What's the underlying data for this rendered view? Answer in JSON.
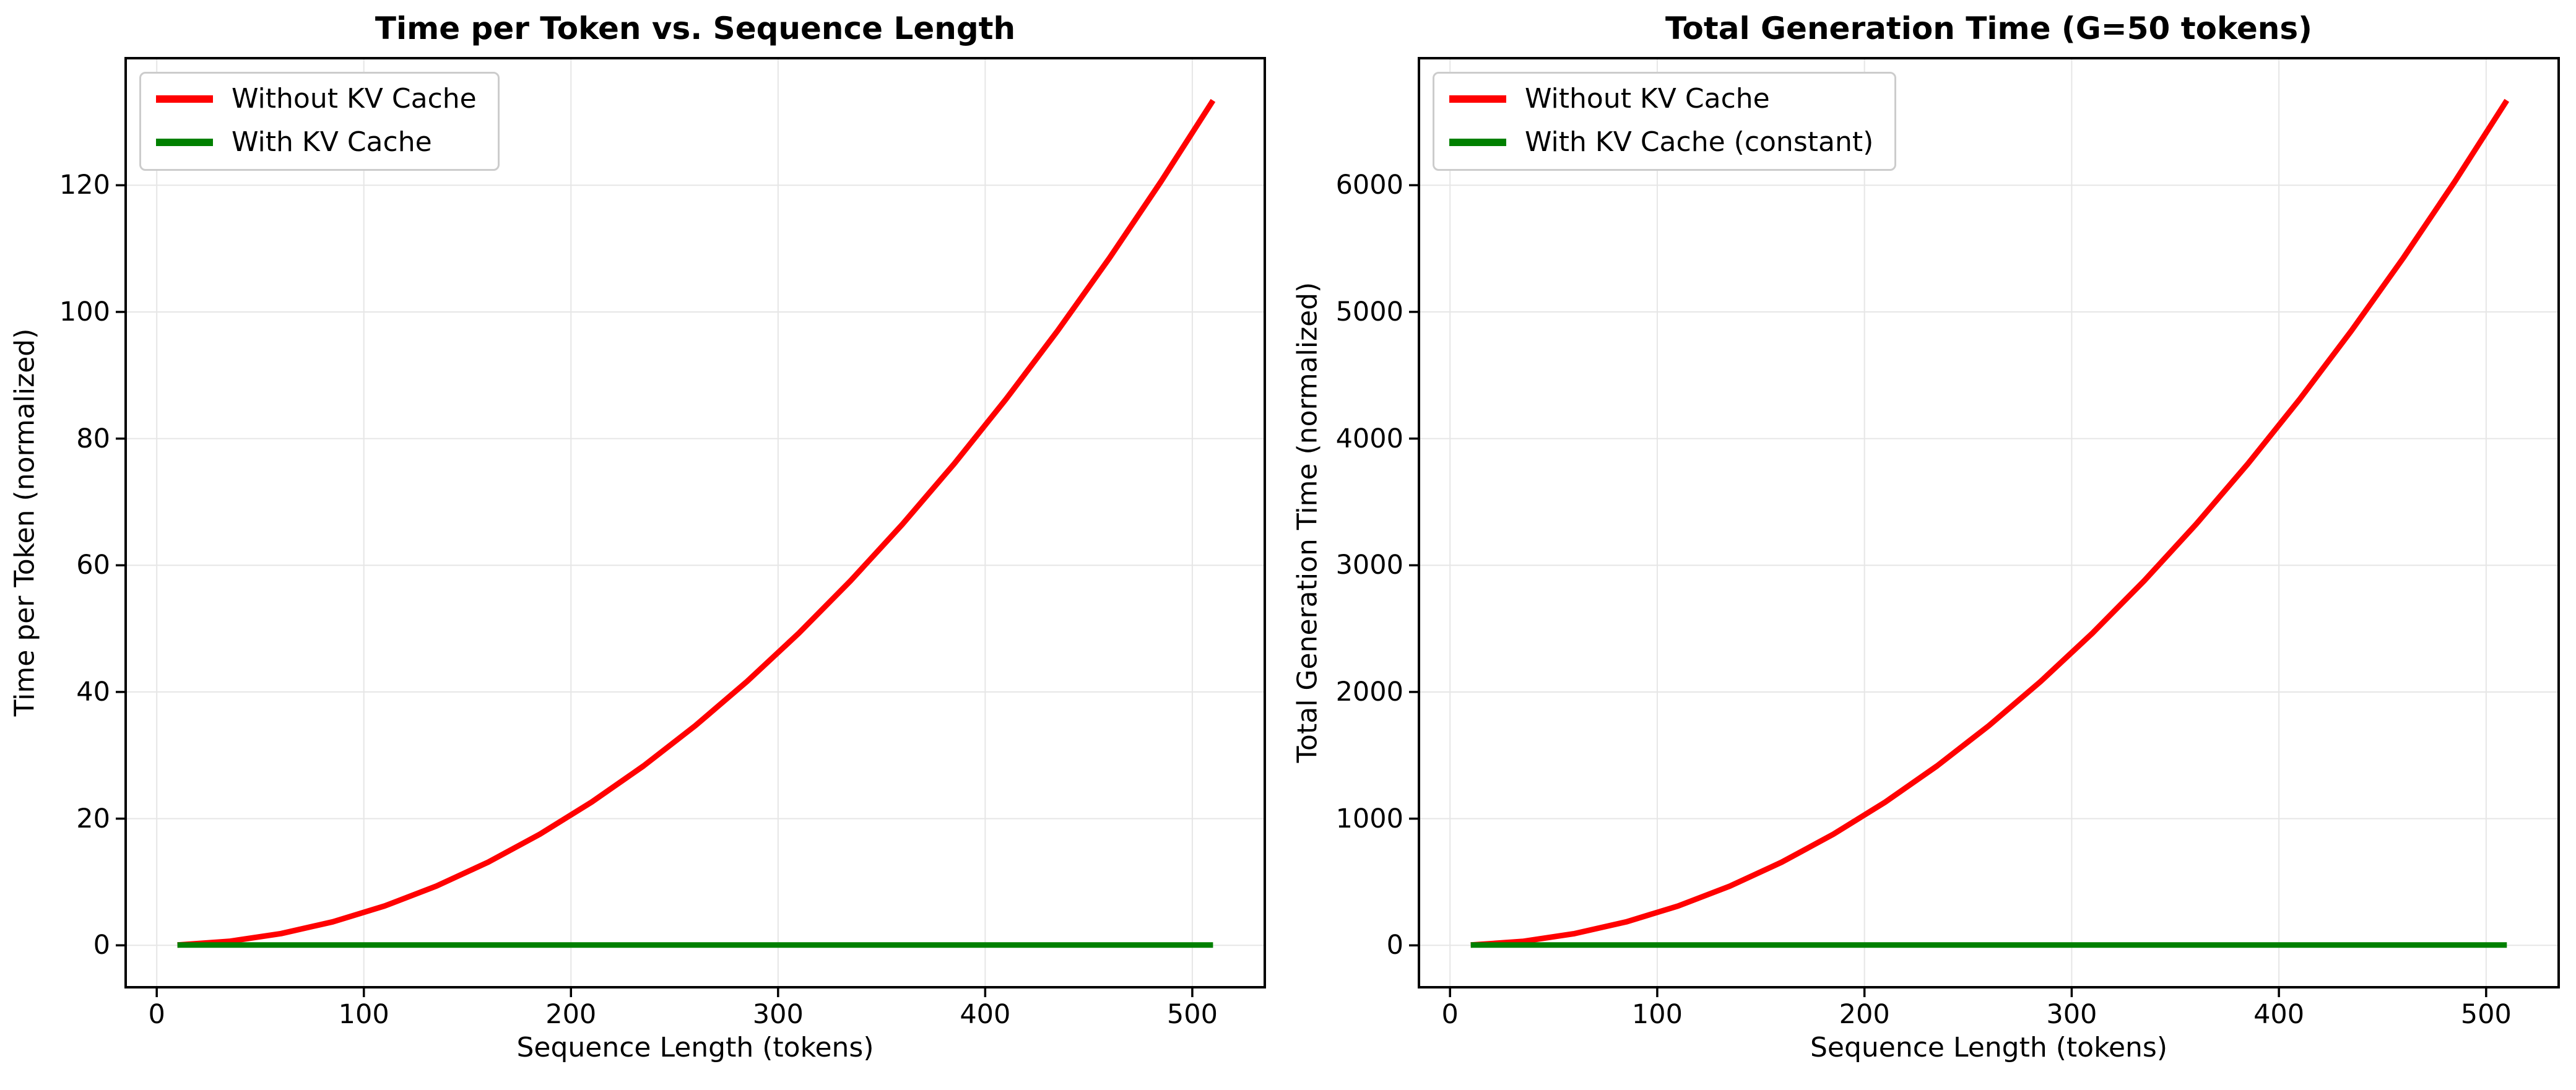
{
  "figure": {
    "background": "#ffffff",
    "grid_color": "#e6e6e6",
    "spine_color": "#000000",
    "tick_color": "#000000",
    "legend_border_color": "#cccccc"
  },
  "chart_data": [
    {
      "type": "line",
      "title": "Time per Token vs. Sequence Length",
      "xlabel": "Sequence Length (tokens)",
      "ylabel": "Time per Token (normalized)",
      "x": [
        10,
        35,
        60,
        85,
        110,
        135,
        160,
        185,
        210,
        235,
        260,
        285,
        310,
        335,
        360,
        385,
        410,
        435,
        460,
        485,
        510
      ],
      "series": [
        {
          "name": "Without KV Cache",
          "color": "#ff0000",
          "values": [
            0.05,
            0.63,
            1.85,
            3.71,
            6.21,
            9.35,
            13.13,
            17.55,
            22.62,
            28.32,
            34.67,
            41.65,
            49.28,
            57.55,
            66.46,
            76.01,
            86.21,
            97.04,
            108.51,
            120.63,
            133.39
          ]
        },
        {
          "name": "With KV Cache",
          "color": "#008000",
          "values": [
            0.05,
            0.05,
            0.05,
            0.05,
            0.05,
            0.05,
            0.05,
            0.05,
            0.05,
            0.05,
            0.05,
            0.05,
            0.05,
            0.05,
            0.05,
            0.05,
            0.05,
            0.05,
            0.05,
            0.05,
            0.05
          ]
        }
      ],
      "xlim": [
        -15,
        535
      ],
      "ylim": [
        -6.62,
        140.06
      ],
      "xticks": [
        0,
        100,
        200,
        300,
        400,
        500
      ],
      "yticks": [
        0,
        20,
        40,
        60,
        80,
        100,
        120
      ],
      "grid": true,
      "legend_position": "upper left"
    },
    {
      "type": "line",
      "title": "Total Generation Time (G=50 tokens)",
      "xlabel": "Sequence Length (tokens)",
      "ylabel": "Total Generation Time (normalized)",
      "x": [
        10,
        35,
        60,
        85,
        110,
        135,
        160,
        185,
        210,
        235,
        260,
        285,
        310,
        335,
        360,
        385,
        410,
        435,
        460,
        485,
        510
      ],
      "series": [
        {
          "name": "Without KV Cache",
          "color": "#ff0000",
          "values": [
            2.6,
            31.4,
            92.3,
            185.3,
            310.3,
            467.3,
            656.4,
            877.6,
            1130.8,
            1416.0,
            1733.3,
            2082.7,
            2464.1,
            2877.6,
            3323.1,
            3800.6,
            4310.3,
            4851.9,
            5425.6,
            6031.4,
            6669.2
          ]
        },
        {
          "name": "With KV Cache (constant)",
          "color": "#008000",
          "values": [
            2.6,
            2.6,
            2.6,
            2.6,
            2.6,
            2.6,
            2.6,
            2.6,
            2.6,
            2.6,
            2.6,
            2.6,
            2.6,
            2.6,
            2.6,
            2.6,
            2.6,
            2.6,
            2.6,
            2.6,
            2.6
          ]
        }
      ],
      "xlim": [
        -15,
        535
      ],
      "ylim": [
        -330.7,
        7002.5
      ],
      "xticks": [
        0,
        100,
        200,
        300,
        400,
        500
      ],
      "yticks": [
        0,
        1000,
        2000,
        3000,
        4000,
        5000,
        6000
      ],
      "grid": true,
      "legend_position": "upper left"
    }
  ]
}
